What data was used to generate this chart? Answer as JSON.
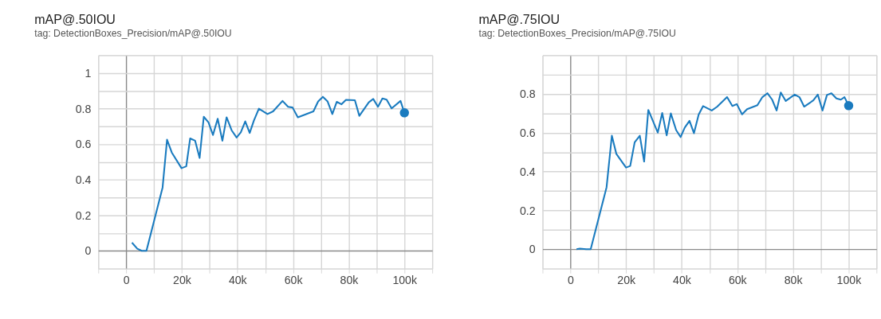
{
  "chart_data": [
    {
      "type": "line",
      "title": "mAP@.50IOU",
      "subtitle": "tag: DetectionBoxes_Precision/mAP@.50IOU",
      "xlim": [
        -10000,
        110000
      ],
      "ylim": [
        -0.1,
        1.1
      ],
      "xticks": [
        {
          "value": -10000,
          "label": null
        },
        0,
        {
          "value": 10000,
          "label": null
        },
        {
          "value": 20000,
          "label": "20k"
        },
        {
          "value": 30000,
          "label": null
        },
        {
          "value": 40000,
          "label": "40k"
        },
        {
          "value": 50000,
          "label": null
        },
        {
          "value": 60000,
          "label": "60k"
        },
        {
          "value": 70000,
          "label": null
        },
        {
          "value": 80000,
          "label": "80k"
        },
        {
          "value": 90000,
          "label": null
        },
        {
          "value": 100000,
          "label": "100k"
        },
        {
          "value": 110000,
          "label": null
        }
      ],
      "yticks": [
        {
          "value": -0.1,
          "label": null
        },
        0,
        {
          "value": 0.1,
          "label": null
        },
        0.2,
        {
          "value": 0.3,
          "label": null
        },
        0.4,
        {
          "value": 0.5,
          "label": null
        },
        0.6,
        {
          "value": 0.7,
          "label": null
        },
        0.8,
        {
          "value": 0.9,
          "label": null
        },
        1,
        {
          "value": 1.1,
          "label": null
        }
      ],
      "grid": true,
      "series": [
        {
          "color": "#1a7bbf",
          "x": [
            2100,
            4000,
            5600,
            7300,
            13100,
            14700,
            16400,
            19900,
            21600,
            23000,
            24800,
            26400,
            27900,
            29600,
            31200,
            32900,
            34600,
            36100,
            37900,
            39700,
            41200,
            42800,
            44400,
            45900,
            47700,
            50800,
            52800,
            56200,
            58200,
            59800,
            61700,
            67300,
            69000,
            70700,
            72400,
            74100,
            75700,
            77400,
            79000,
            82200,
            83800,
            87200,
            88800,
            90500,
            92100,
            93600,
            95400,
            98600,
            100000
          ],
          "values": [
            0.046,
            0.012,
            0.0,
            0.0,
            0.356,
            0.625,
            0.553,
            0.465,
            0.475,
            0.632,
            0.619,
            0.522,
            0.754,
            0.722,
            0.651,
            0.743,
            0.619,
            0.751,
            0.678,
            0.637,
            0.666,
            0.728,
            0.663,
            0.732,
            0.799,
            0.769,
            0.784,
            0.843,
            0.81,
            0.806,
            0.751,
            0.784,
            0.84,
            0.866,
            0.84,
            0.769,
            0.838,
            0.824,
            0.849,
            0.847,
            0.759,
            0.835,
            0.854,
            0.81,
            0.857,
            0.85,
            0.801,
            0.843,
            0.776
          ]
        },
        {
          "type": "scatter",
          "color": "#1a7bbf",
          "marker": "circle",
          "x": [
            100000
          ],
          "values": [
            0.776
          ]
        }
      ]
    },
    {
      "type": "line",
      "title": "mAP@.75IOU",
      "subtitle": "tag: DetectionBoxes_Precision/mAP@.75IOU",
      "xlim": [
        -10000,
        110000
      ],
      "ylim": [
        -0.1,
        1.0
      ],
      "xticks": [
        {
          "value": -10000,
          "label": null
        },
        0,
        {
          "value": 10000,
          "label": null
        },
        {
          "value": 20000,
          "label": "20k"
        },
        {
          "value": 30000,
          "label": null
        },
        {
          "value": 40000,
          "label": "40k"
        },
        {
          "value": 50000,
          "label": null
        },
        {
          "value": 60000,
          "label": "60k"
        },
        {
          "value": 70000,
          "label": null
        },
        {
          "value": 80000,
          "label": "80k"
        },
        {
          "value": 90000,
          "label": null
        },
        {
          "value": 100000,
          "label": "100k"
        },
        {
          "value": 110000,
          "label": null
        }
      ],
      "yticks": [
        {
          "value": -0.1,
          "label": null
        },
        0,
        {
          "value": 0.1,
          "label": null
        },
        0.2,
        {
          "value": 0.3,
          "label": null
        },
        0.4,
        {
          "value": 0.5,
          "label": null
        },
        0.6,
        {
          "value": 0.7,
          "label": null
        },
        0.8,
        {
          "value": 0.9,
          "label": null
        },
        {
          "value": 1.0,
          "label": null
        }
      ],
      "grid": true,
      "series": [
        {
          "color": "#1a7bbf",
          "x": [
            2200,
            3400,
            5700,
            7300,
            13000,
            14900,
            16500,
            20000,
            21500,
            23100,
            24950,
            26500,
            28000,
            31400,
            33000,
            34600,
            36100,
            38000,
            39600,
            41100,
            42800,
            44400,
            46100,
            47700,
            50800,
            52700,
            56300,
            58200,
            59800,
            61700,
            63500,
            67200,
            69000,
            70800,
            72500,
            74100,
            75600,
            77400,
            80600,
            82300,
            84000,
            87300,
            88900,
            90600,
            92200,
            93800,
            95600,
            97200,
            98500,
            100000
          ],
          "values": [
            0.0,
            0.003,
            0.0,
            0.0,
            0.319,
            0.585,
            0.492,
            0.421,
            0.429,
            0.551,
            0.585,
            0.452,
            0.718,
            0.601,
            0.702,
            0.587,
            0.7,
            0.614,
            0.578,
            0.627,
            0.662,
            0.598,
            0.694,
            0.738,
            0.715,
            0.734,
            0.784,
            0.738,
            0.748,
            0.695,
            0.722,
            0.742,
            0.784,
            0.804,
            0.771,
            0.715,
            0.808,
            0.764,
            0.797,
            0.784,
            0.735,
            0.767,
            0.797,
            0.715,
            0.795,
            0.804,
            0.777,
            0.771,
            0.784,
            0.74
          ]
        },
        {
          "type": "scatter",
          "color": "#1a7bbf",
          "marker": "circle",
          "x": [
            100000
          ],
          "values": [
            0.74
          ]
        }
      ]
    }
  ]
}
